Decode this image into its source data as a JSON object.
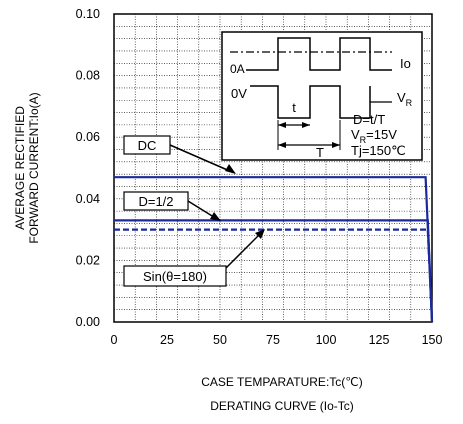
{
  "chart_data": {
    "type": "line",
    "title": "",
    "xlabel": "CASE TEMPARATURE:Tc(℃)",
    "caption": "DERATING CURVE (Io-Tc)",
    "ylabel_line1": "AVERAGE RECTIFIED",
    "ylabel_line2": "FORWARD CURRENT:Io(A)",
    "xlim": [
      0,
      150
    ],
    "ylim": [
      0,
      0.1
    ],
    "xticks": [
      "0",
      "25",
      "50",
      "75",
      "100",
      "125",
      "150"
    ],
    "yticks": [
      "0.00",
      "0.02",
      "0.04",
      "0.06",
      "0.08",
      "0.10"
    ],
    "grid": true,
    "series": [
      {
        "name": "DC",
        "color": "#1a2a9a",
        "dash": "solid",
        "points": [
          [
            0,
            0.047
          ],
          [
            147,
            0.047
          ],
          [
            150,
            0.0
          ]
        ]
      },
      {
        "name": "D=1/2",
        "color": "#1a2a9a",
        "dash": "solid",
        "points": [
          [
            0,
            0.033
          ],
          [
            148,
            0.033
          ],
          [
            150,
            0.0
          ]
        ]
      },
      {
        "name": "Sin(θ=180)",
        "color": "#1a2a9a",
        "dash": "dashed",
        "points": [
          [
            0,
            0.03
          ],
          [
            148,
            0.03
          ],
          [
            150,
            0.0
          ]
        ]
      }
    ],
    "annotations": [
      {
        "label": "DC"
      },
      {
        "label": "D=1/2"
      },
      {
        "label": "Sin(θ=180)"
      }
    ],
    "inset": {
      "io_label": "Io",
      "zero_a": "0A",
      "zero_v": "0V",
      "vr_label": "V",
      "vr_sub": "R",
      "t_label": "t",
      "T_label": "T",
      "param1": "D=t/T",
      "param2_main": "V",
      "param2_sub": "R",
      "param2_rest": "=15V",
      "param3": "Tj=150℃"
    }
  }
}
